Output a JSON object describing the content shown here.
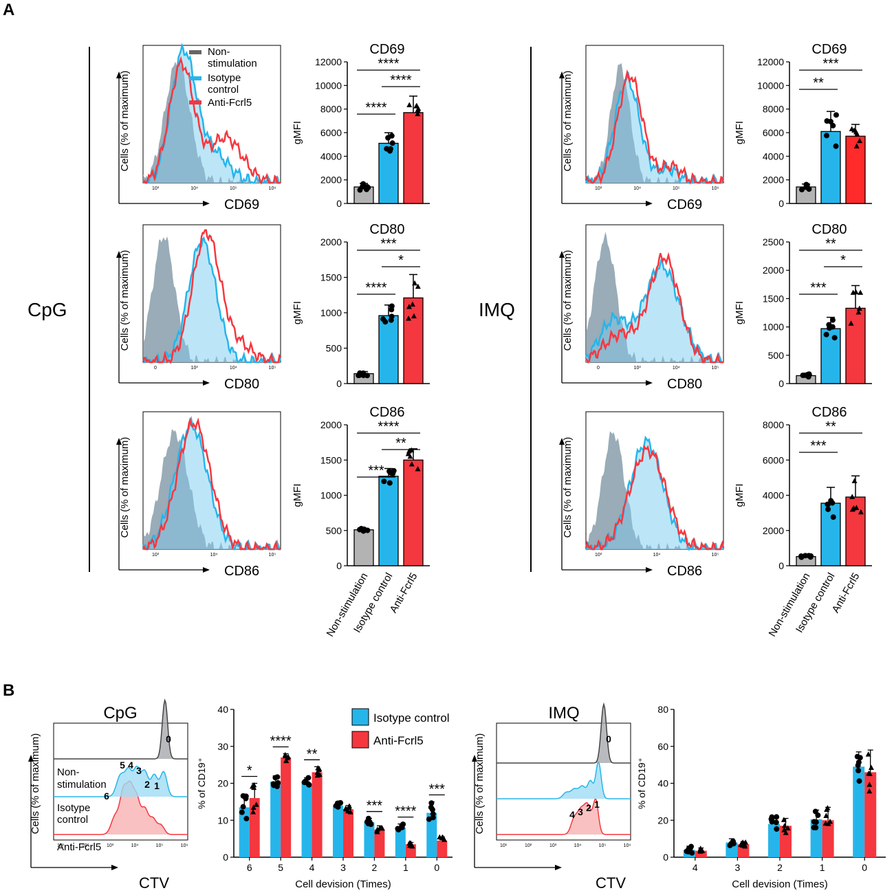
{
  "panels": {
    "a": "A",
    "b": "B"
  },
  "conditions": {
    "cpg": "CpG",
    "imq": "IMQ"
  },
  "colors": {
    "nonstim": "#a6a9ad",
    "nonstim_bar": "#b3b3b3",
    "isotype": "#26b5ea",
    "anti": "#f5373f",
    "anti_bar_imq": "#ff2a2a",
    "isotype_fill": "#9fdcf5",
    "anti_fill": "#f7b1b1"
  },
  "hist": {
    "ylabel": "Cells (% of maximum)",
    "legend": {
      "nonstim": "Non-stimulation",
      "isotype": "Isotype control",
      "anti": "Anti-Fcrl5"
    }
  },
  "bar_common": {
    "ylabel": "gMFI",
    "categories": [
      "Non-stimulation",
      "Isotype control",
      "Anti-Fcrl5"
    ]
  },
  "chart_data": [
    {
      "id": "cpg-cd69",
      "type": "bar",
      "title": "CD69",
      "ylabel": "gMFI",
      "ylim": [
        0,
        12000
      ],
      "ticks": [
        "0",
        "2000",
        "4000",
        "6000",
        "8000",
        "10000",
        "12000"
      ],
      "values": [
        1400,
        5100,
        7700
      ],
      "errors": [
        300,
        900,
        1400
      ],
      "significance": [
        {
          "from": 0,
          "to": 2,
          "label": "****"
        },
        {
          "from": 1,
          "to": 2,
          "label": "****"
        },
        {
          "from": 0,
          "to": 1,
          "label": "****"
        }
      ]
    },
    {
      "id": "cpg-cd80",
      "type": "bar",
      "title": "CD80",
      "ylabel": "gMFI",
      "ylim": [
        0,
        2000
      ],
      "ticks": [
        "0",
        "500",
        "1000",
        "1500",
        "2000"
      ],
      "values": [
        140,
        960,
        1210
      ],
      "errors": [
        30,
        150,
        330
      ],
      "significance": [
        {
          "from": 0,
          "to": 2,
          "label": "***"
        },
        {
          "from": 1,
          "to": 2,
          "label": "*"
        },
        {
          "from": 0,
          "to": 1,
          "label": "****"
        }
      ]
    },
    {
      "id": "cpg-cd86",
      "type": "bar",
      "title": "CD86",
      "ylabel": "gMFI",
      "ylim": [
        0,
        2000
      ],
      "ticks": [
        "0",
        "500",
        "1000",
        "1500",
        "2000"
      ],
      "values": [
        510,
        1270,
        1500
      ],
      "errors": [
        20,
        110,
        160
      ],
      "significance": [
        {
          "from": 0,
          "to": 2,
          "label": "****"
        },
        {
          "from": 1,
          "to": 2,
          "label": "**"
        },
        {
          "from": 0,
          "to": 1,
          "label": "***"
        }
      ]
    },
    {
      "id": "imq-cd69",
      "type": "bar",
      "title": "CD69",
      "ylabel": "gMFI",
      "ylim": [
        0,
        12000
      ],
      "ticks": [
        "0",
        "2000",
        "4000",
        "6000",
        "8000",
        "10000",
        "12000"
      ],
      "values": [
        1400,
        6100,
        5700
      ],
      "errors": [
        250,
        1700,
        1000
      ],
      "significance": [
        {
          "from": 0,
          "to": 2,
          "label": "***"
        },
        {
          "from": 0,
          "to": 1,
          "label": "**"
        }
      ]
    },
    {
      "id": "imq-cd80",
      "type": "bar",
      "title": "CD80",
      "ylabel": "gMFI",
      "ylim": [
        0,
        2500
      ],
      "ticks": [
        "0",
        "500",
        "1000",
        "1500",
        "2000",
        "2500"
      ],
      "values": [
        140,
        970,
        1330
      ],
      "errors": [
        30,
        200,
        400
      ],
      "significance": [
        {
          "from": 0,
          "to": 2,
          "label": "**"
        },
        {
          "from": 1,
          "to": 2,
          "label": "*"
        },
        {
          "from": 0,
          "to": 1,
          "label": "***"
        }
      ]
    },
    {
      "id": "imq-cd86",
      "type": "bar",
      "title": "CD86",
      "ylabel": "gMFI",
      "ylim": [
        0,
        8000
      ],
      "ticks": [
        "0",
        "2000",
        "4000",
        "6000",
        "8000"
      ],
      "values": [
        520,
        3550,
        3900
      ],
      "errors": [
        60,
        900,
        1200
      ],
      "significance": [
        {
          "from": 0,
          "to": 2,
          "label": "**"
        },
        {
          "from": 0,
          "to": 1,
          "label": "***"
        }
      ]
    },
    {
      "id": "cpg-ctv-bars",
      "type": "bar",
      "ylabel": "% of CD19⁺",
      "xlabel": "Cell devision (Times)",
      "ylim": [
        0,
        40
      ],
      "ticks": [
        "0",
        "10",
        "20",
        "30",
        "40"
      ],
      "categories": [
        "6",
        "5",
        "4",
        "3",
        "2",
        "1",
        "0"
      ],
      "series": [
        {
          "name": "Isotype control",
          "values": [
            13.5,
            20.5,
            20.0,
            14.0,
            9.5,
            8.0,
            12.0
          ],
          "errors": [
            3.5,
            1.5,
            1.5,
            1.0,
            1.0,
            1.0,
            3.0
          ]
        },
        {
          "name": "Anti-Fcrl5",
          "values": [
            16.0,
            27.0,
            23.0,
            13.0,
            7.5,
            3.5,
            4.5
          ],
          "errors": [
            4.0,
            1.0,
            1.5,
            1.0,
            1.0,
            0.5,
            1.0
          ]
        }
      ],
      "significance": [
        "*",
        "****",
        "**",
        "",
        "***",
        "****",
        "***"
      ]
    },
    {
      "id": "imq-ctv-bars",
      "type": "bar",
      "ylabel": "% of CD19⁺",
      "xlabel": "Cell devision (Times)",
      "ylim": [
        0,
        80
      ],
      "ticks": [
        "0",
        "20",
        "40",
        "60",
        "80"
      ],
      "categories": [
        "4",
        "3",
        "2",
        "1",
        "0"
      ],
      "series": [
        {
          "name": "Isotype control",
          "values": [
            4.0,
            8.0,
            18.0,
            20.5,
            49.0
          ],
          "errors": [
            2.0,
            2.0,
            4.0,
            5.0,
            8.0
          ]
        },
        {
          "name": "Anti-Fcrl5",
          "values": [
            3.5,
            7.0,
            17.0,
            20.0,
            46.0
          ],
          "errors": [
            1.5,
            1.5,
            4.0,
            7.0,
            12.0
          ]
        }
      ]
    }
  ],
  "histograms": {
    "cpg": [
      {
        "marker": "CD69",
        "ticks": [
          "10³",
          "10⁴",
          "10⁵",
          "10⁶"
        ],
        "nonstim_peak": 0.22,
        "isotype_peak": 0.27,
        "anti_peak": 0.25
      },
      {
        "marker": "CD80",
        "ticks": [
          "0",
          "10³",
          "10⁴",
          "10⁵"
        ],
        "nonstim_peak": 0.17,
        "isotype_peak": 0.43,
        "anti_peak": 0.46
      },
      {
        "marker": "CD86",
        "ticks": [
          "10³",
          "10⁴",
          "10⁵"
        ],
        "nonstim_peak": 0.22,
        "isotype_peak": 0.35,
        "anti_peak": 0.36
      }
    ],
    "imq": [
      {
        "marker": "CD69",
        "ticks": [
          "10³",
          "10⁴",
          "10⁵",
          "10⁶"
        ],
        "nonstim_peak": 0.25,
        "isotype_peak": 0.3,
        "anti_peak": 0.32
      },
      {
        "marker": "CD80",
        "ticks": [
          "0",
          "10³",
          "10⁴",
          "10⁵"
        ],
        "nonstim_peak": 0.15,
        "isotype_peak": 0.55,
        "anti_peak": 0.57
      },
      {
        "marker": "CD86",
        "ticks": [
          "10³",
          "10⁴",
          "10⁵"
        ],
        "nonstim_peak": 0.22,
        "isotype_peak": 0.42,
        "anti_peak": 0.42
      }
    ]
  },
  "ctv": {
    "xlabel": "CTV",
    "legend": {
      "isotype": "Isotype control",
      "anti": "Anti-Fcrl5"
    },
    "ticks": [
      "10¹",
      "10²",
      "10³",
      "10⁴",
      "10⁵",
      "10⁶"
    ],
    "cpg": {
      "rows": [
        "Non-\nstimulation",
        "Isotype\ncontrol",
        "Anti-Fcrl5"
      ],
      "peaks": [
        "5",
        "4",
        "3",
        "2",
        "1",
        "0",
        "6"
      ]
    },
    "imq": {
      "peaks": [
        "4",
        "3",
        "2",
        "1",
        "0"
      ]
    }
  }
}
